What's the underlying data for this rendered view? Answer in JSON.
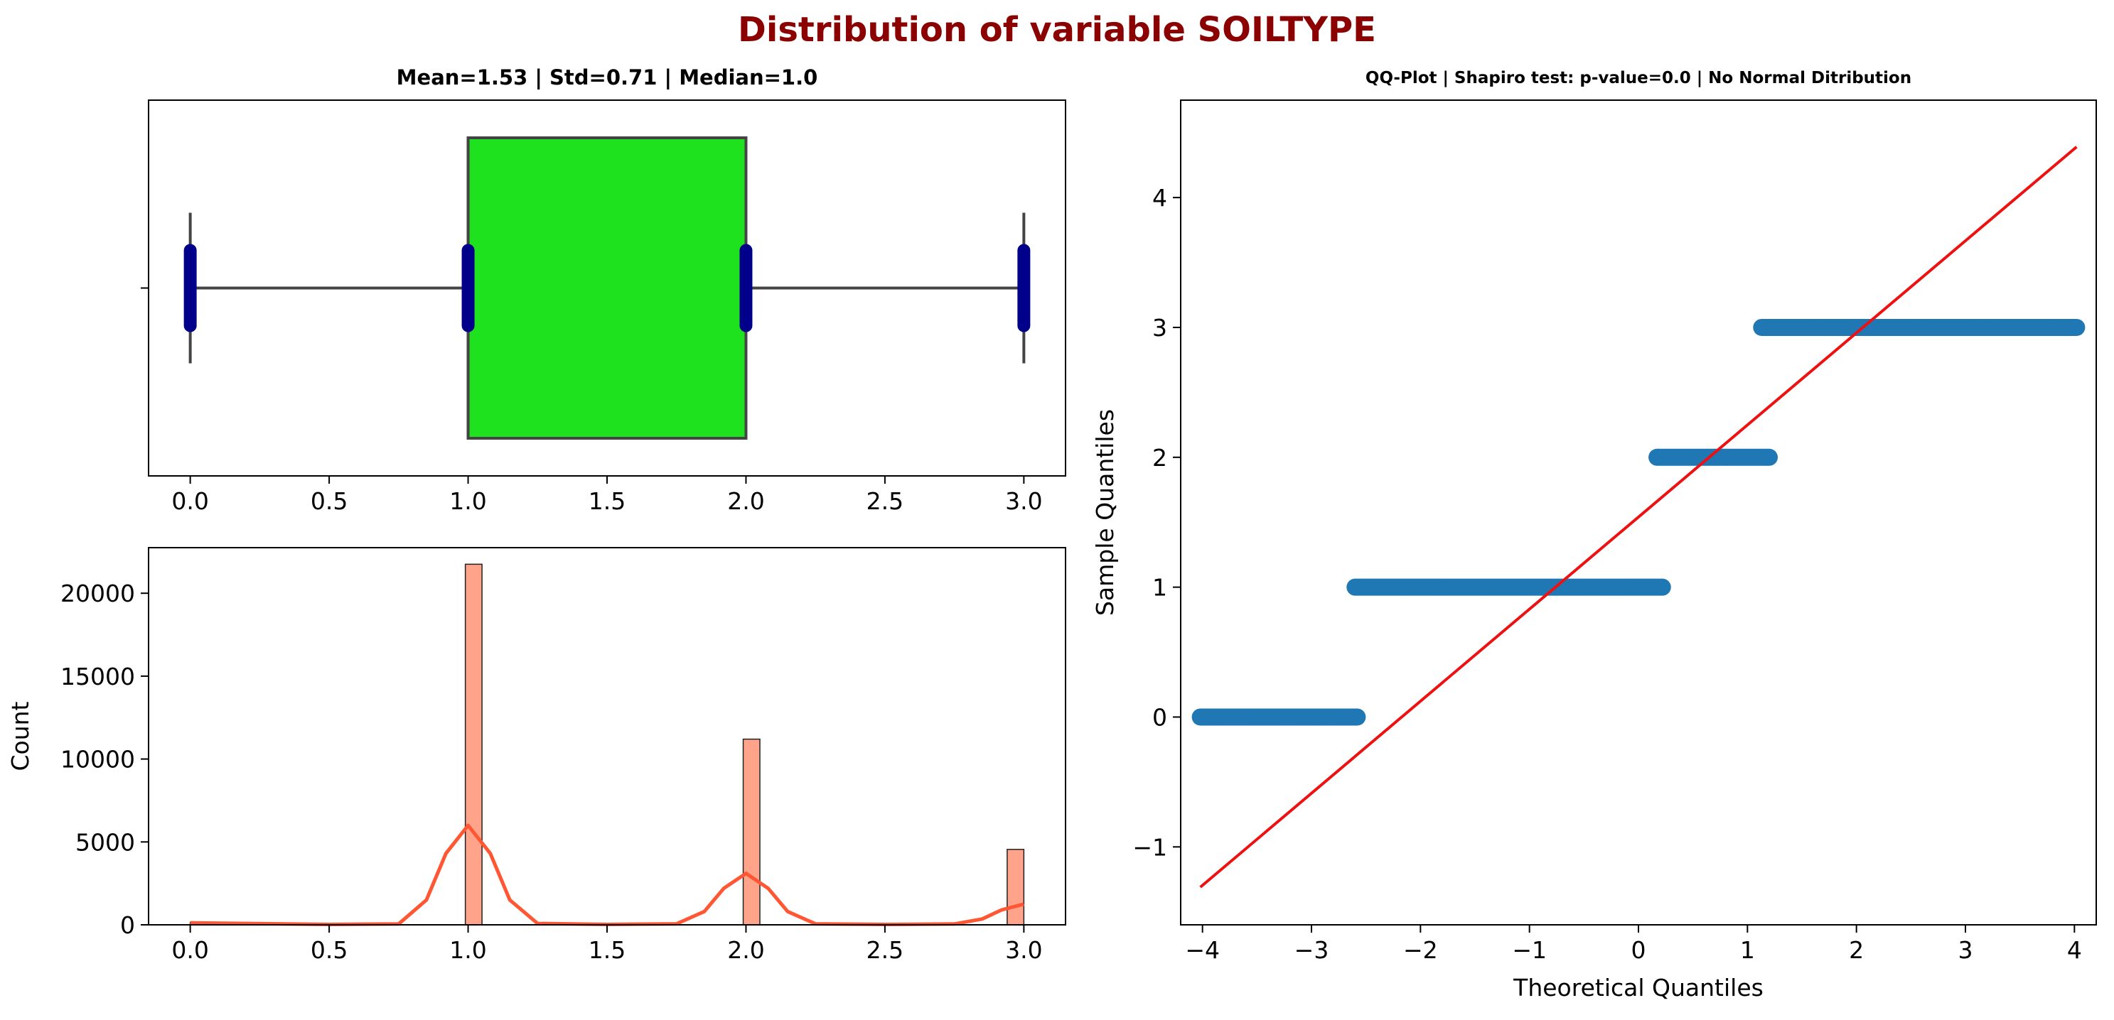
{
  "figure": {
    "suptitle": "Distribution of variable SOILTYPE",
    "suptitle_color": "#8b0000"
  },
  "chart_data": [
    {
      "type": "box",
      "title": "Mean=1.53 | Std=0.71 | Median=1.0",
      "xlabel": "",
      "ylabel": "",
      "xlim": [
        -0.15,
        3.15
      ],
      "xticks": [
        "0.0",
        "0.5",
        "1.0",
        "1.5",
        "2.0",
        "2.5",
        "3.0"
      ],
      "whisker_low": 0,
      "q1": 1,
      "median": 1,
      "q3": 2,
      "whisker_high": 3,
      "points": [
        0,
        1,
        2,
        3
      ],
      "box_color": "#1fe21f",
      "point_color": "#00008b"
    },
    {
      "type": "bar",
      "title": "",
      "xlabel": "",
      "ylabel": "Count",
      "xlim": [
        -0.15,
        3.15
      ],
      "ylim": [
        0,
        22750
      ],
      "xticks": [
        "0.0",
        "0.5",
        "1.0",
        "1.5",
        "2.0",
        "2.5",
        "3.0"
      ],
      "yticks": [
        "0",
        "5000",
        "10000",
        "15000",
        "20000"
      ],
      "bins": [
        {
          "x0": 0.0,
          "x1": 0.06,
          "value": 150
        },
        {
          "x0": 0.99,
          "x1": 1.05,
          "value": 21750
        },
        {
          "x0": 1.99,
          "x1": 2.05,
          "value": 11200
        },
        {
          "x0": 2.94,
          "x1": 3.0,
          "value": 4550
        }
      ],
      "kde": [
        [
          0,
          120
        ],
        [
          0.5,
          20
        ],
        [
          0.75,
          50
        ],
        [
          0.85,
          1500
        ],
        [
          0.92,
          4300
        ],
        [
          1.0,
          6000
        ],
        [
          1.08,
          4300
        ],
        [
          1.15,
          1500
        ],
        [
          1.25,
          80
        ],
        [
          1.5,
          20
        ],
        [
          1.75,
          60
        ],
        [
          1.85,
          800
        ],
        [
          1.92,
          2200
        ],
        [
          2.0,
          3100
        ],
        [
          2.08,
          2200
        ],
        [
          2.15,
          800
        ],
        [
          2.25,
          60
        ],
        [
          2.5,
          20
        ],
        [
          2.75,
          50
        ],
        [
          2.85,
          350
        ],
        [
          2.92,
          900
        ],
        [
          3.0,
          1250
        ]
      ],
      "bar_color": "#ffa38a",
      "kde_color": "#ff5733"
    },
    {
      "type": "scatter",
      "title": "QQ-Plot | Shapiro test: p-value=0.0 | No Normal Ditribution",
      "xlabel": "Theoretical Quantiles",
      "ylabel": "Sample Quantiles",
      "xlim": [
        -4.2,
        4.2
      ],
      "ylim": [
        -1.6,
        4.75
      ],
      "xticks": [
        "−4",
        "−3",
        "−2",
        "−1",
        "0",
        "1",
        "2",
        "3",
        "4"
      ],
      "yticks": [
        "−1",
        "0",
        "1",
        "2",
        "3",
        "4"
      ],
      "series": [
        {
          "points": [
            [
              -4.02,
              0
            ],
            [
              -3.85,
              0
            ],
            [
              -3.78,
              0
            ],
            [
              -3.72,
              0
            ],
            [
              -3.65,
              0
            ],
            [
              -3.58,
              0
            ],
            [
              -3.5,
              0
            ],
            [
              -3.42,
              0
            ],
            [
              -3.34,
              0
            ],
            [
              -3.26,
              0
            ],
            [
              -3.18,
              0
            ],
            [
              -3.1,
              0
            ],
            [
              -3.02,
              0
            ],
            [
              -2.94,
              0
            ],
            [
              -2.86,
              0
            ],
            [
              -2.78,
              0
            ],
            [
              -2.7,
              0
            ],
            [
              -2.62,
              0
            ],
            [
              -2.58,
              0
            ]
          ]
        },
        {
          "points": [
            [
              -2.6,
              1
            ],
            [
              -2.2,
              1
            ],
            [
              -1.8,
              1
            ],
            [
              -1.4,
              1
            ],
            [
              -1.0,
              1
            ],
            [
              -0.6,
              1
            ],
            [
              -0.2,
              1
            ],
            [
              0.22,
              1
            ]
          ]
        },
        {
          "points": [
            [
              0.17,
              2
            ],
            [
              0.5,
              2
            ],
            [
              0.8,
              2
            ],
            [
              1.2,
              2
            ]
          ]
        },
        {
          "points": [
            [
              1.13,
              3
            ],
            [
              1.6,
              3
            ],
            [
              2.1,
              3
            ],
            [
              2.6,
              3
            ],
            [
              3.05,
              3
            ],
            [
              3.35,
              3
            ],
            [
              3.5,
              3
            ],
            [
              3.62,
              3
            ],
            [
              3.72,
              3
            ],
            [
              3.8,
              3
            ],
            [
              3.92,
              3
            ],
            [
              4.02,
              3
            ]
          ]
        }
      ],
      "ref_line": [
        [
          -4.02,
          -1.31
        ],
        [
          4.02,
          4.39
        ]
      ],
      "point_color": "#1f77b4",
      "line_color": "#ee1111"
    }
  ]
}
